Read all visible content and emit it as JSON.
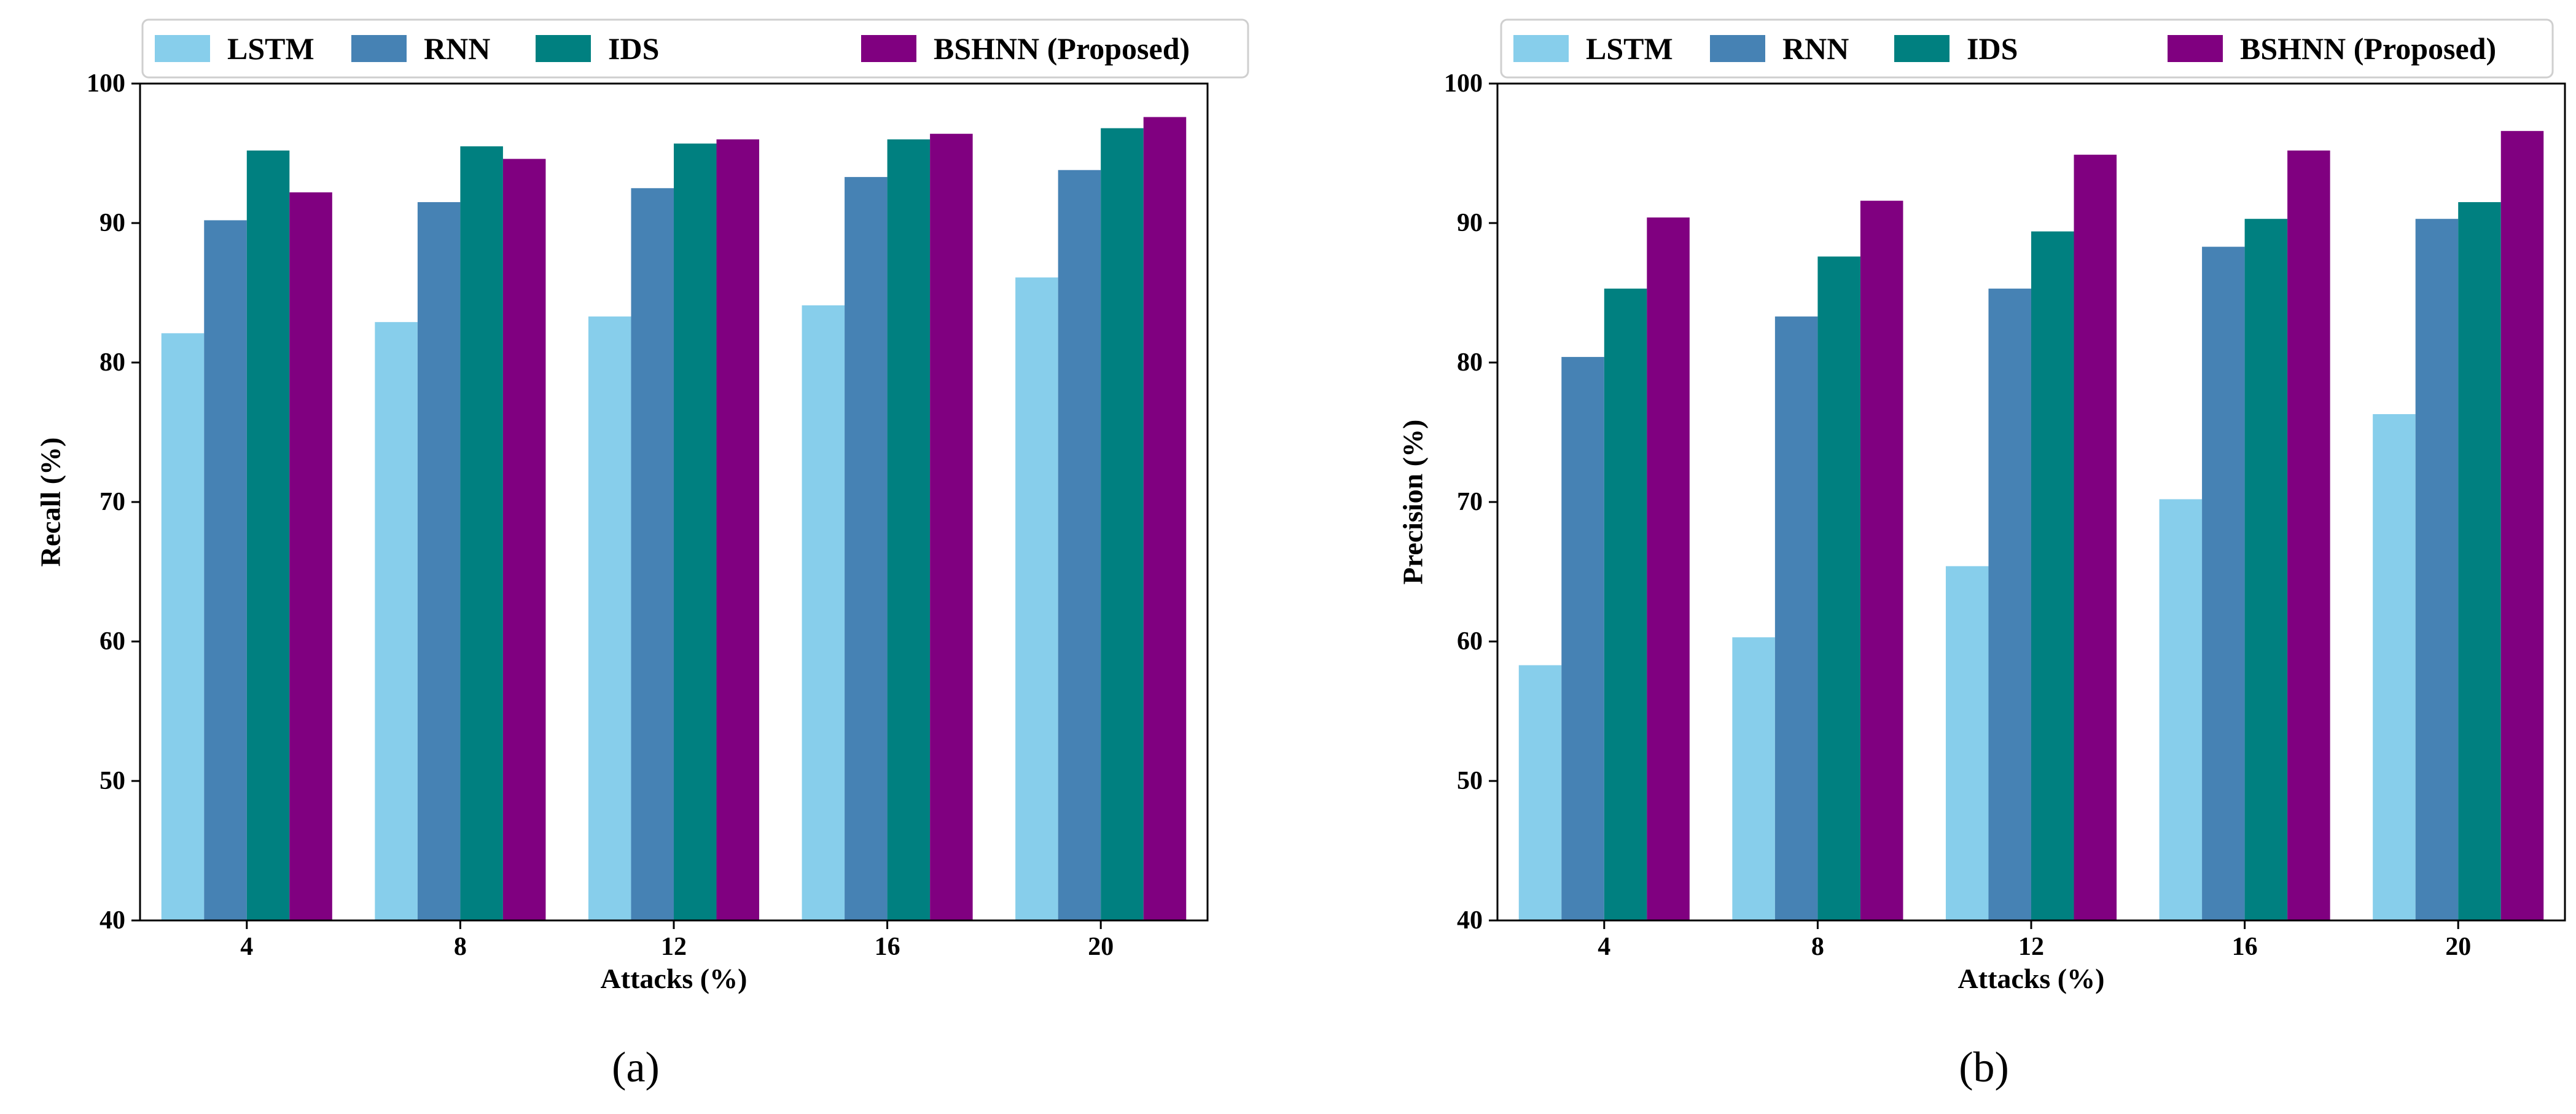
{
  "chart_data": [
    {
      "type": "bar",
      "panel_label": "(a)",
      "categories": [
        "4",
        "8",
        "12",
        "16",
        "20"
      ],
      "series": [
        {
          "name": "LSTM",
          "color": "#87CEEB",
          "values": [
            82.1,
            82.9,
            83.3,
            84.1,
            86.1
          ]
        },
        {
          "name": "RNN",
          "color": "#4682B4",
          "values": [
            90.2,
            91.5,
            92.5,
            93.3,
            93.8
          ]
        },
        {
          "name": "IDS",
          "color": "#008080",
          "values": [
            95.2,
            95.5,
            95.7,
            96.0,
            96.8
          ]
        },
        {
          "name": "BSHNN (Proposed)",
          "color": "#800080",
          "values": [
            92.2,
            94.6,
            96.0,
            96.4,
            97.6
          ]
        }
      ],
      "title": "",
      "xlabel": "Attacks (%)",
      "ylabel": "Recall (%)",
      "ylim": [
        40,
        100
      ],
      "yticks": [
        "40",
        "50",
        "60",
        "70",
        "80",
        "90",
        "100"
      ],
      "legend_position": "top"
    },
    {
      "type": "bar",
      "panel_label": "(b)",
      "categories": [
        "4",
        "8",
        "12",
        "16",
        "20"
      ],
      "series": [
        {
          "name": "LSTM",
          "color": "#87CEEB",
          "values": [
            58.3,
            60.3,
            65.4,
            70.2,
            76.3
          ]
        },
        {
          "name": "RNN",
          "color": "#4682B4",
          "values": [
            80.4,
            83.3,
            85.3,
            88.3,
            90.3
          ]
        },
        {
          "name": "IDS",
          "color": "#008080",
          "values": [
            85.3,
            87.6,
            89.4,
            90.3,
            91.5
          ]
        },
        {
          "name": "BSHNN (Proposed)",
          "color": "#800080",
          "values": [
            90.4,
            91.6,
            94.9,
            95.2,
            96.6
          ]
        }
      ],
      "title": "",
      "xlabel": "Attacks (%)",
      "ylabel": "Precision (%)",
      "ylim": [
        40,
        100
      ],
      "yticks": [
        "40",
        "50",
        "60",
        "70",
        "80",
        "90",
        "100"
      ],
      "legend_position": "top"
    }
  ]
}
